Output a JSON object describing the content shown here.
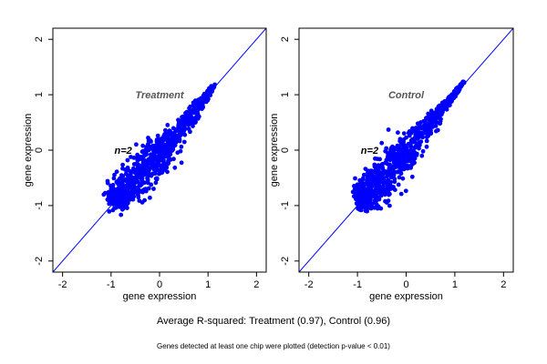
{
  "chart_data": [
    {
      "type": "scatter",
      "panel_title": "Treatment",
      "annotation": "n=2",
      "xlabel": "gene expression",
      "ylabel": "gene expression",
      "xlim": [
        -2.2,
        2.2
      ],
      "ylim": [
        -2.2,
        2.2
      ],
      "xticks": [
        "-2",
        "-1",
        "0",
        "1",
        "2"
      ],
      "yticks": [
        "-2",
        "-1",
        "0",
        "1",
        "2"
      ],
      "reference_line": "y = x",
      "point_color": "#0000ff",
      "line_color": "#0000ff",
      "cloud": {
        "spine": [
          [
            -0.95,
            -0.9
          ],
          [
            -0.8,
            -0.8
          ],
          [
            -0.5,
            -0.55
          ],
          [
            -0.2,
            -0.25
          ],
          [
            0,
            -0.05
          ],
          [
            0.3,
            0.25
          ],
          [
            0.6,
            0.55
          ],
          [
            0.9,
            0.9
          ],
          [
            1.1,
            1.15
          ]
        ],
        "width": [
          0.22,
          0.32,
          0.38,
          0.38,
          0.32,
          0.24,
          0.16,
          0.08,
          0.03
        ],
        "n_points": 900
      }
    },
    {
      "type": "scatter",
      "panel_title": "Control",
      "annotation": "n=2",
      "xlabel": "gene expression",
      "ylabel": "gene expression",
      "xlim": [
        -2.2,
        2.2
      ],
      "ylim": [
        -2.2,
        2.2
      ],
      "xticks": [
        "-2",
        "-1",
        "0",
        "1",
        "2"
      ],
      "yticks": [
        "-2",
        "-1",
        "0",
        "1",
        "2"
      ],
      "reference_line": "y = x",
      "point_color": "#0000ff",
      "line_color": "#0000ff",
      "cloud": {
        "spine": [
          [
            -0.95,
            -0.95
          ],
          [
            -0.8,
            -0.8
          ],
          [
            -0.5,
            -0.5
          ],
          [
            -0.2,
            -0.2
          ],
          [
            0,
            0.0
          ],
          [
            0.3,
            0.3
          ],
          [
            0.6,
            0.6
          ],
          [
            0.9,
            0.9
          ],
          [
            1.15,
            1.2
          ]
        ],
        "width": [
          0.2,
          0.3,
          0.36,
          0.38,
          0.32,
          0.22,
          0.14,
          0.07,
          0.03
        ],
        "n_points": 900
      }
    }
  ],
  "caption": "Average R-squared: Treatment (0.97), Control (0.96)",
  "footnote": "Genes detected at least one chip were plotted (detection p-value < 0.01)"
}
